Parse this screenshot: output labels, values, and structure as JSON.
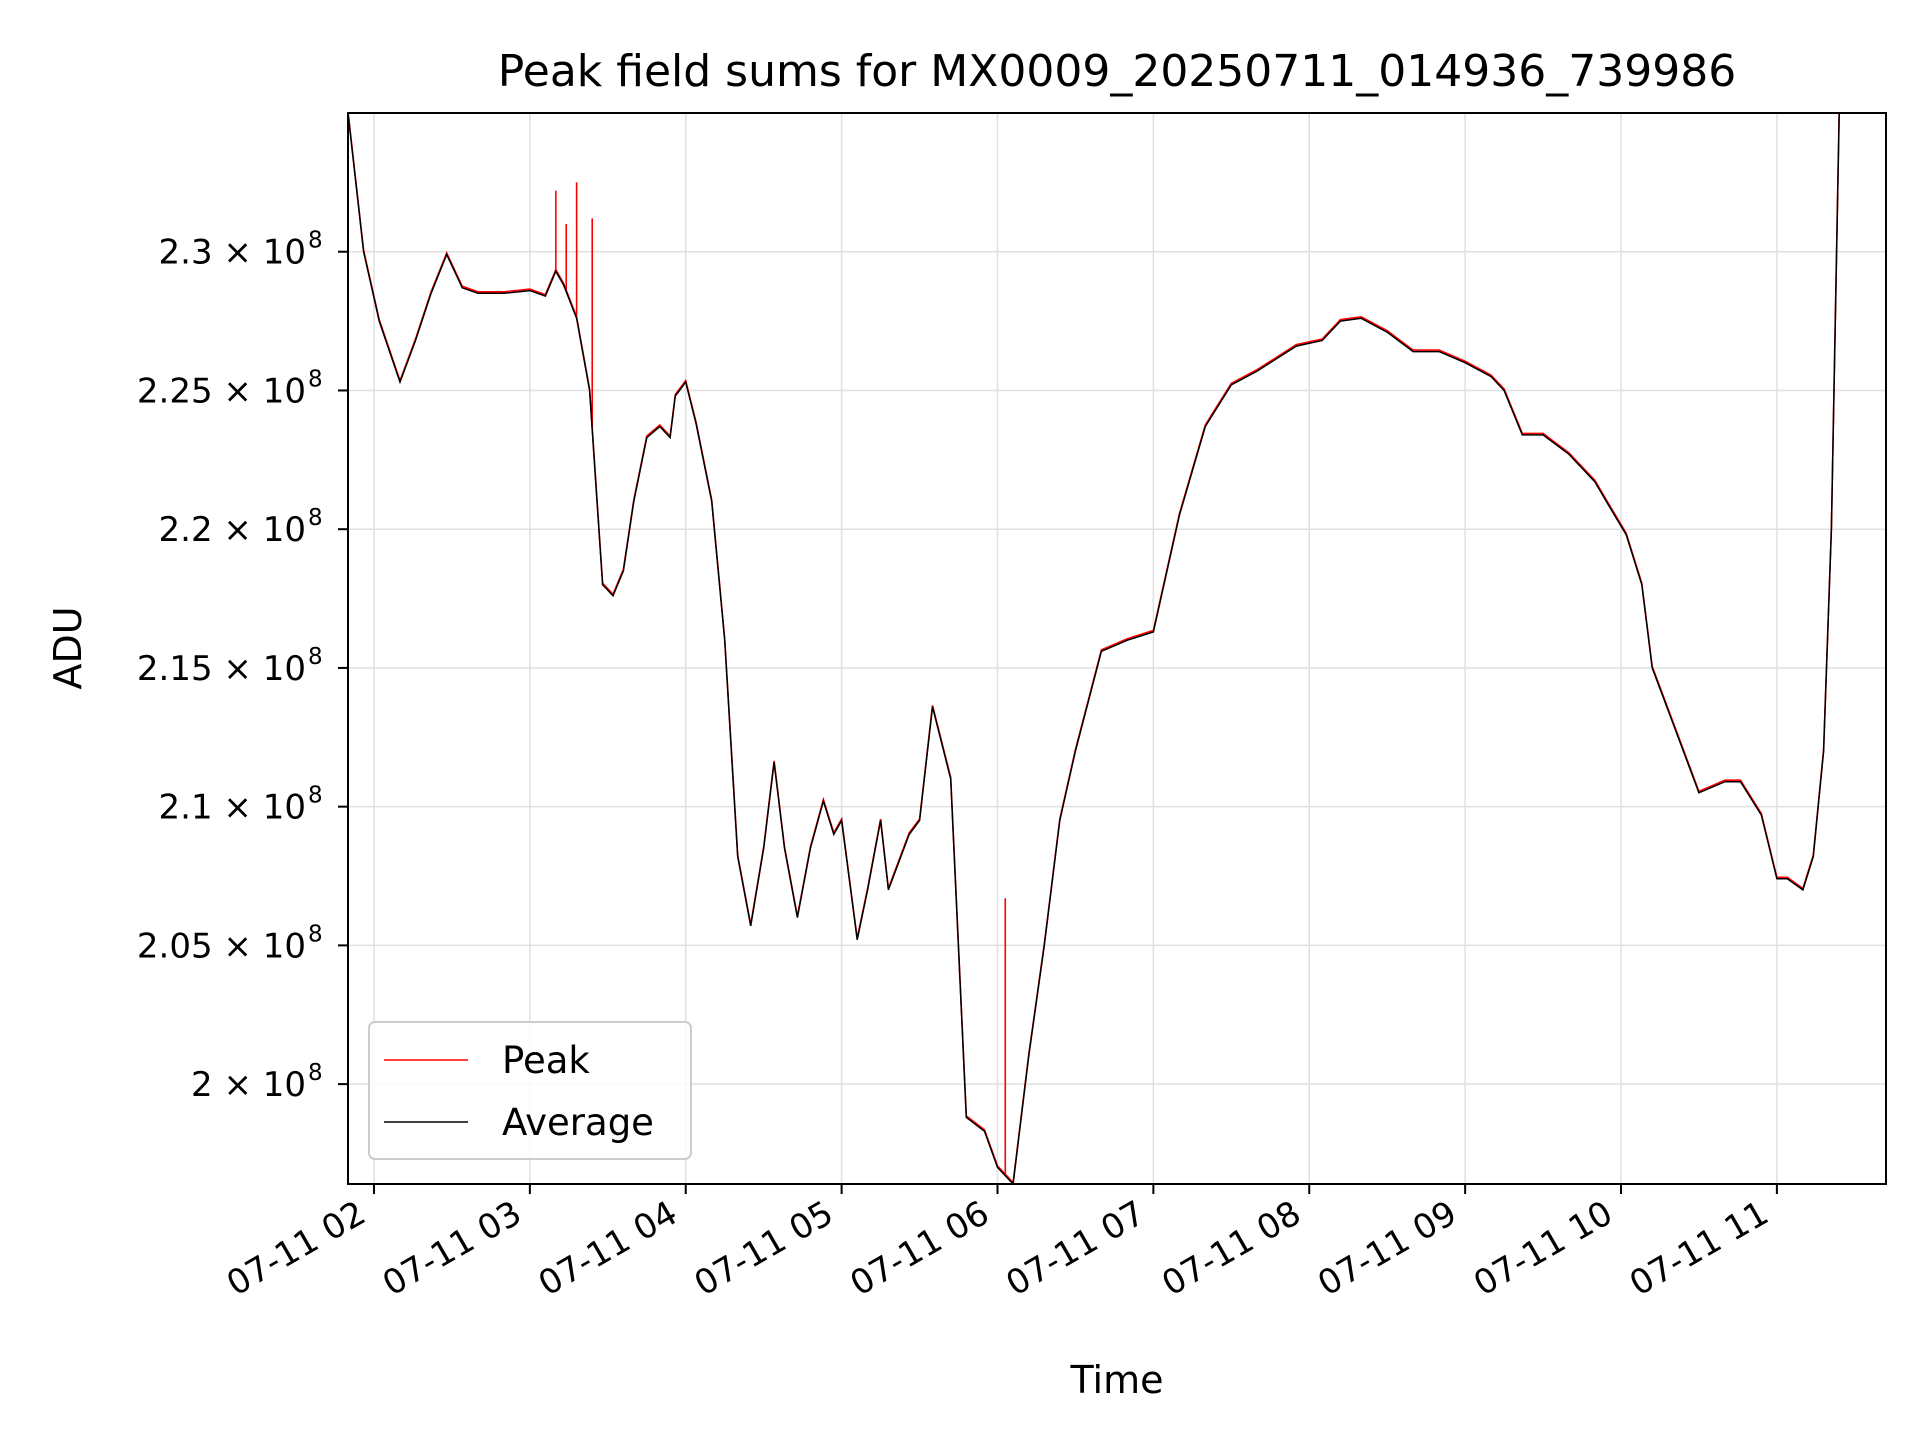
{
  "chart_data": {
    "type": "line",
    "title": "Peak field sums for MX0009_20250711_014936_739986",
    "xlabel": "Time",
    "ylabel": "ADU",
    "xlim": [
      "07-11 01:50",
      "07-11 11:42"
    ],
    "ylim": [
      196400000,
      235000000
    ],
    "x_ticks": [
      "07-11 02",
      "07-11 03",
      "07-11 04",
      "07-11 05",
      "07-11 06",
      "07-11 07",
      "07-11 08",
      "07-11 09",
      "07-11 10",
      "07-11 11"
    ],
    "y_ticks": [
      {
        "label": "2 × 10",
        "exp": "8",
        "value": 200000000
      },
      {
        "label": "2.05 × 10",
        "exp": "8",
        "value": 205000000
      },
      {
        "label": "2.1 × 10",
        "exp": "8",
        "value": 210000000
      },
      {
        "label": "2.15 × 10",
        "exp": "8",
        "value": 215000000
      },
      {
        "label": "2.2 × 10",
        "exp": "8",
        "value": 220000000
      },
      {
        "label": "2.25 × 10",
        "exp": "8",
        "value": 225000000
      },
      {
        "label": "2.3 × 10",
        "exp": "8",
        "value": 230000000
      }
    ],
    "grid": true,
    "legend_position": "lower-left",
    "series": [
      {
        "name": "Peak",
        "color": "#ff0000"
      },
      {
        "name": "Average",
        "color": "#000000"
      }
    ],
    "x": [
      "07-11 01:50",
      "07-11 01:56",
      "07-11 02:02",
      "07-11 02:10",
      "07-11 02:16",
      "07-11 02:22",
      "07-11 02:28",
      "07-11 02:34",
      "07-11 02:40",
      "07-11 02:50",
      "07-11 03:00",
      "07-11 03:06",
      "07-11 03:10",
      "07-11 03:13",
      "07-11 03:18",
      "07-11 03:23",
      "07-11 03:28",
      "07-11 03:32",
      "07-11 03:36",
      "07-11 03:40",
      "07-11 03:45",
      "07-11 03:50",
      "07-11 03:54",
      "07-11 03:56",
      "07-11 04:00",
      "07-11 04:04",
      "07-11 04:10",
      "07-11 04:15",
      "07-11 04:20",
      "07-11 04:25",
      "07-11 04:30",
      "07-11 04:34",
      "07-11 04:38",
      "07-11 04:43",
      "07-11 04:48",
      "07-11 04:53",
      "07-11 04:57",
      "07-11 05:00",
      "07-11 05:06",
      "07-11 05:10",
      "07-11 05:15",
      "07-11 05:18",
      "07-11 05:22",
      "07-11 05:26",
      "07-11 05:30",
      "07-11 05:35",
      "07-11 05:42",
      "07-11 05:48",
      "07-11 05:55",
      "07-11 06:00",
      "07-11 06:06",
      "07-11 06:12",
      "07-11 06:18",
      "07-11 06:24",
      "07-11 06:30",
      "07-11 06:40",
      "07-11 06:50",
      "07-11 07:00",
      "07-11 07:10",
      "07-11 07:20",
      "07-11 07:30",
      "07-11 07:40",
      "07-11 07:55",
      "07-11 08:05",
      "07-11 08:12",
      "07-11 08:20",
      "07-11 08:30",
      "07-11 08:40",
      "07-11 08:50",
      "07-11 09:00",
      "07-11 09:10",
      "07-11 09:15",
      "07-11 09:22",
      "07-11 09:30",
      "07-11 09:40",
      "07-11 09:50",
      "07-11 09:55",
      "07-11 10:02",
      "07-11 10:08",
      "07-11 10:12",
      "07-11 10:20",
      "07-11 10:30",
      "07-11 10:40",
      "07-11 10:46",
      "07-11 10:54",
      "07-11 11:00",
      "07-11 11:04",
      "07-11 11:10",
      "07-11 11:14",
      "07-11 11:18",
      "07-11 11:21",
      "07-11 11:24"
    ],
    "average": [
      235000000,
      230000000,
      227500000,
      225300000,
      226800000,
      228500000,
      229900000,
      228700000,
      228500000,
      228500000,
      228600000,
      228400000,
      229300000,
      228800000,
      227600000,
      225000000,
      218000000,
      217600000,
      218500000,
      221000000,
      223300000,
      223700000,
      223300000,
      224800000,
      225300000,
      223800000,
      221000000,
      216000000,
      208200000,
      205700000,
      208500000,
      211600000,
      208500000,
      206000000,
      208500000,
      210200000,
      209000000,
      209500000,
      205200000,
      207000000,
      209500000,
      207000000,
      208000000,
      209000000,
      209500000,
      213600000,
      211000000,
      198800000,
      198300000,
      197000000,
      196400000,
      201000000,
      205000000,
      209500000,
      212000000,
      215600000,
      216000000,
      216300000,
      220500000,
      223700000,
      225200000,
      225700000,
      226600000,
      226800000,
      227500000,
      227600000,
      227100000,
      226400000,
      226400000,
      226000000,
      225500000,
      225000000,
      223400000,
      223400000,
      222700000,
      221700000,
      220900000,
      219800000,
      218000000,
      215000000,
      213000000,
      210500000,
      210900000,
      210900000,
      209700000,
      207400000,
      207400000,
      207000000,
      208200000,
      212000000,
      220000000,
      235000000
    ],
    "peak_spikes": [
      {
        "x": "07-11 03:10",
        "y": 232200000
      },
      {
        "x": "07-11 03:14",
        "y": 231000000
      },
      {
        "x": "07-11 03:18",
        "y": 232500000
      },
      {
        "x": "07-11 03:24",
        "y": 231200000
      },
      {
        "x": "07-11 06:03",
        "y": 206700000
      }
    ]
  }
}
